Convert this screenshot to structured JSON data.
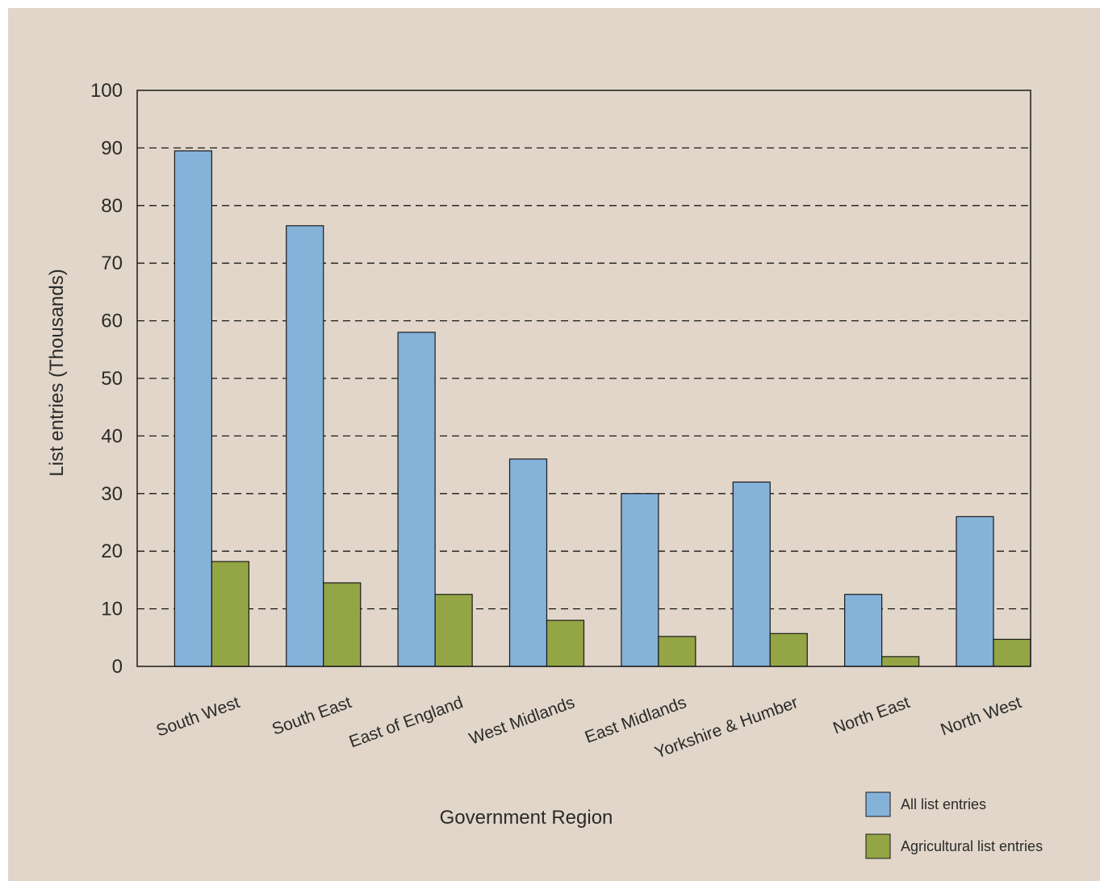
{
  "colors": {
    "background": "#e1d6c9",
    "all_entries": "#85b2d9",
    "agricultural_entries": "#94a545",
    "axis": "#1a1a1a"
  },
  "chart_data": {
    "type": "bar",
    "title": "",
    "xlabel": "Government Region",
    "ylabel": "List entries (Thousands)",
    "ylim": [
      0,
      100
    ],
    "yticks": [
      "0",
      "10",
      "20",
      "30",
      "40",
      "50",
      "60",
      "70",
      "80",
      "90",
      "100"
    ],
    "grid": "dashed horizontal",
    "legend_position": "bottom-right",
    "categories": [
      "South West",
      "South East",
      "East of England",
      "West Midlands",
      "East Midlands",
      "Yorkshire & Humber",
      "North East",
      "North West"
    ],
    "series": [
      {
        "name": "All list entries",
        "values": [
          89.5,
          76.5,
          58,
          36,
          30,
          32,
          12.5,
          26
        ]
      },
      {
        "name": "Agricultural list entries",
        "values": [
          18.2,
          14.5,
          12.5,
          8,
          5.2,
          5.7,
          1.7,
          4.7
        ]
      }
    ]
  }
}
